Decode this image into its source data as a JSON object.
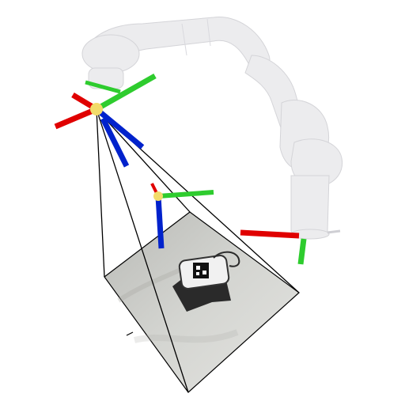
{
  "scene": {
    "background": "#ffffff",
    "colors": {
      "axis_x": "#e00000",
      "axis_y": "#2ecc2e",
      "axis_z": "#0022cc",
      "origin": "#f2dc6a",
      "frustum_edge": "#000000",
      "arm": "#ececee",
      "image_plane": "#c8c8c4",
      "object": "#2a2a2a"
    },
    "elements": {
      "robot_arm": "robot-arm",
      "camera_frame": "camera-frame",
      "object_frame": "object-frame",
      "base_frame": "base-frame",
      "frustum": "camera-frustum",
      "image_plane": "camera-image-plane",
      "target_object": "target-object-with-fiducial-tag"
    }
  }
}
